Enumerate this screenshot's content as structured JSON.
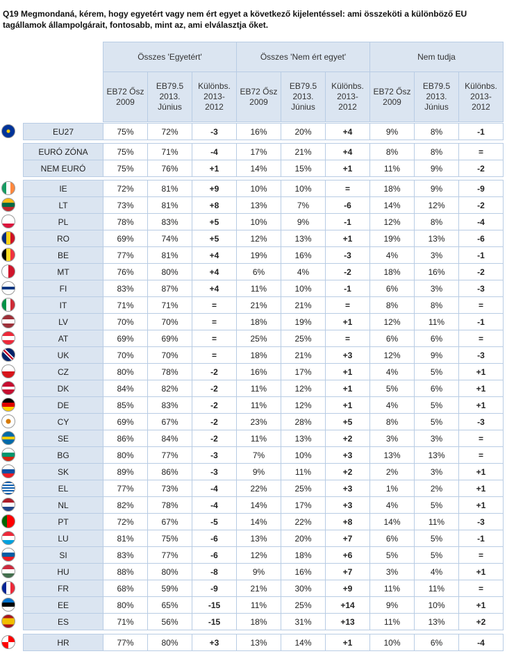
{
  "header": {
    "title": "Q19 Megmondaná, kérem, hogy egyetért vagy nem ért egyet a következő kijelentéssel: ami összeköti a különböző EU tagállamok állampolgárait, fontosabb, mint az, ami elválasztja őket."
  },
  "table": {
    "groups": [
      "Összes 'Egyetért'",
      "Összes 'Nem ért egyet'",
      "Nem tudja"
    ],
    "subheaders": [
      "EB72 Ősz 2009",
      "EB79.5 2013. Június",
      "Különbs. 2013-2012",
      "EB72 Ősz 2009",
      "EB79.5 2013. Június",
      "Különbs. 2013-2012",
      "EB72 Ősz 2009",
      "EB79.5 2013. Június",
      "Különbs. 2013-2012"
    ],
    "sections": [
      [
        [
          "EU27",
          "75%",
          "72%",
          "-3",
          "16%",
          "20%",
          "+4",
          "9%",
          "8%",
          "-1"
        ]
      ],
      [
        [
          "EURÓ ZÓNA",
          "75%",
          "71%",
          "-4",
          "17%",
          "21%",
          "+4",
          "8%",
          "8%",
          "="
        ],
        [
          "NEM EURÓ",
          "75%",
          "76%",
          "+1",
          "14%",
          "15%",
          "+1",
          "11%",
          "9%",
          "-2"
        ]
      ],
      [
        [
          "IE",
          "72%",
          "81%",
          "+9",
          "10%",
          "10%",
          "=",
          "18%",
          "9%",
          "-9"
        ],
        [
          "LT",
          "73%",
          "81%",
          "+8",
          "13%",
          "7%",
          "-6",
          "14%",
          "12%",
          "-2"
        ],
        [
          "PL",
          "78%",
          "83%",
          "+5",
          "10%",
          "9%",
          "-1",
          "12%",
          "8%",
          "-4"
        ],
        [
          "RO",
          "69%",
          "74%",
          "+5",
          "12%",
          "13%",
          "+1",
          "19%",
          "13%",
          "-6"
        ],
        [
          "BE",
          "77%",
          "81%",
          "+4",
          "19%",
          "16%",
          "-3",
          "4%",
          "3%",
          "-1"
        ],
        [
          "MT",
          "76%",
          "80%",
          "+4",
          "6%",
          "4%",
          "-2",
          "18%",
          "16%",
          "-2"
        ],
        [
          "FI",
          "83%",
          "87%",
          "+4",
          "11%",
          "10%",
          "-1",
          "6%",
          "3%",
          "-3"
        ],
        [
          "IT",
          "71%",
          "71%",
          "=",
          "21%",
          "21%",
          "=",
          "8%",
          "8%",
          "="
        ],
        [
          "LV",
          "70%",
          "70%",
          "=",
          "18%",
          "19%",
          "+1",
          "12%",
          "11%",
          "-1"
        ],
        [
          "AT",
          "69%",
          "69%",
          "=",
          "25%",
          "25%",
          "=",
          "6%",
          "6%",
          "="
        ],
        [
          "UK",
          "70%",
          "70%",
          "=",
          "18%",
          "21%",
          "+3",
          "12%",
          "9%",
          "-3"
        ],
        [
          "CZ",
          "80%",
          "78%",
          "-2",
          "16%",
          "17%",
          "+1",
          "4%",
          "5%",
          "+1"
        ],
        [
          "DK",
          "84%",
          "82%",
          "-2",
          "11%",
          "12%",
          "+1",
          "5%",
          "6%",
          "+1"
        ],
        [
          "DE",
          "85%",
          "83%",
          "-2",
          "11%",
          "12%",
          "+1",
          "4%",
          "5%",
          "+1"
        ],
        [
          "CY",
          "69%",
          "67%",
          "-2",
          "23%",
          "28%",
          "+5",
          "8%",
          "5%",
          "-3"
        ],
        [
          "SE",
          "86%",
          "84%",
          "-2",
          "11%",
          "13%",
          "+2",
          "3%",
          "3%",
          "="
        ],
        [
          "BG",
          "80%",
          "77%",
          "-3",
          "7%",
          "10%",
          "+3",
          "13%",
          "13%",
          "="
        ],
        [
          "SK",
          "89%",
          "86%",
          "-3",
          "9%",
          "11%",
          "+2",
          "2%",
          "3%",
          "+1"
        ],
        [
          "EL",
          "77%",
          "73%",
          "-4",
          "22%",
          "25%",
          "+3",
          "1%",
          "2%",
          "+1"
        ],
        [
          "NL",
          "82%",
          "78%",
          "-4",
          "14%",
          "17%",
          "+3",
          "4%",
          "5%",
          "+1"
        ],
        [
          "PT",
          "72%",
          "67%",
          "-5",
          "14%",
          "22%",
          "+8",
          "14%",
          "11%",
          "-3"
        ],
        [
          "LU",
          "81%",
          "75%",
          "-6",
          "13%",
          "20%",
          "+7",
          "6%",
          "5%",
          "-1"
        ],
        [
          "SI",
          "83%",
          "77%",
          "-6",
          "12%",
          "18%",
          "+6",
          "5%",
          "5%",
          "="
        ],
        [
          "HU",
          "88%",
          "80%",
          "-8",
          "9%",
          "16%",
          "+7",
          "3%",
          "4%",
          "+1"
        ],
        [
          "FR",
          "68%",
          "59%",
          "-9",
          "21%",
          "30%",
          "+9",
          "11%",
          "11%",
          "="
        ],
        [
          "EE",
          "80%",
          "65%",
          "-15",
          "11%",
          "25%",
          "+14",
          "9%",
          "10%",
          "+1"
        ],
        [
          "ES",
          "71%",
          "56%",
          "-15",
          "18%",
          "31%",
          "+13",
          "11%",
          "13%",
          "+2"
        ]
      ],
      [
        [
          "HR",
          "77%",
          "80%",
          "+3",
          "13%",
          "14%",
          "+1",
          "10%",
          "6%",
          "-4"
        ]
      ]
    ]
  }
}
